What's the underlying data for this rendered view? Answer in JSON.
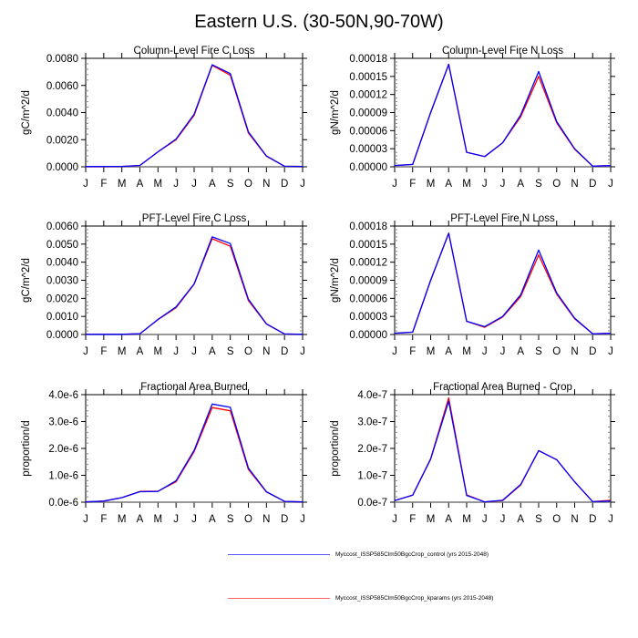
{
  "title": "Eastern U.S. (30-50N,90-70W)",
  "legend": [
    {
      "label": "Myccost_ISSP585Clm50BgcCrop_control (yrs 2015-2048)",
      "color": "#0000ff"
    },
    {
      "label": "Myccost_ISSP585Clm50BgcCrop_kparams (yrs 2015-2048)",
      "color": "#ff0000"
    }
  ],
  "chart_data": [
    {
      "type": "line",
      "title": "Column-Level Fire C Loss",
      "xlabel": "",
      "ylabel": "gC/m^2/d",
      "x": [
        "J",
        "F",
        "M",
        "A",
        "M",
        "J",
        "J",
        "A",
        "S",
        "O",
        "N",
        "D",
        "J"
      ],
      "ylim": [
        0,
        0.008
      ],
      "yticks": [
        0,
        0.002,
        0.004,
        0.006,
        0.008
      ],
      "ytick_labels": [
        "0.0000",
        "0.0020",
        "0.0040",
        "0.0060",
        "0.0080"
      ],
      "series": [
        {
          "name": "Myccost_ISSP585Clm50BgcCrop_kparams (yrs 2015-2048)",
          "color": "#ff0000",
          "values": [
            2e-05,
            2e-05,
            3e-05,
            0.0001,
            0.0011,
            0.002,
            0.0038,
            0.00748,
            0.00675,
            0.0025,
            0.00078,
            4e-05,
            2e-05
          ]
        },
        {
          "name": "Myccost_ISSP585Clm50BgcCrop_control (yrs 2015-2048)",
          "color": "#0000ff",
          "values": [
            2e-05,
            2e-05,
            3e-05,
            0.0001,
            0.0011,
            0.00205,
            0.00388,
            0.00752,
            0.00688,
            0.00258,
            0.0008,
            4e-05,
            2e-05
          ]
        }
      ]
    },
    {
      "type": "line",
      "title": "Column-Level Fire N Loss",
      "xlabel": "",
      "ylabel": "gN/m^2/d",
      "x": [
        "J",
        "F",
        "M",
        "A",
        "M",
        "J",
        "J",
        "A",
        "S",
        "O",
        "N",
        "D",
        "J"
      ],
      "ylim": [
        0,
        0.00018
      ],
      "yticks": [
        0,
        3e-05,
        6e-05,
        9e-05,
        0.00012,
        0.00015,
        0.00018
      ],
      "ytick_labels": [
        "0.00000",
        "0.00003",
        "0.00006",
        "0.00009",
        "0.00012",
        "0.00015",
        "0.00018"
      ],
      "series": [
        {
          "name": "Myccost_ISSP585Clm50BgcCrop_kparams (yrs 2015-2048)",
          "color": "#ff0000",
          "values": [
            2e-06,
            4e-06,
            9e-05,
            0.00017,
            2.4e-05,
            1.7e-05,
            4e-05,
            8.3e-05,
            0.00015,
            7.3e-05,
            2.9e-05,
            1e-06,
            2e-06
          ]
        },
        {
          "name": "Myccost_ISSP585Clm50BgcCrop_control (yrs 2015-2048)",
          "color": "#0000ff",
          "values": [
            2e-06,
            4e-06,
            9e-05,
            0.00017,
            2.4e-05,
            1.7e-05,
            4e-05,
            8.6e-05,
            0.000158,
            7.5e-05,
            3e-05,
            1e-06,
            2e-06
          ]
        }
      ]
    },
    {
      "type": "line",
      "title": "PFT-Level Fire C Loss",
      "xlabel": "",
      "ylabel": "gC/m^2/d",
      "x": [
        "J",
        "F",
        "M",
        "A",
        "M",
        "J",
        "J",
        "A",
        "S",
        "O",
        "N",
        "D",
        "J"
      ],
      "ylim": [
        0,
        0.006
      ],
      "yticks": [
        0,
        0.001,
        0.002,
        0.003,
        0.004,
        0.005,
        0.006
      ],
      "ytick_labels": [
        "0.0000",
        "0.0010",
        "0.0020",
        "0.0030",
        "0.0040",
        "0.0050",
        "0.0060"
      ],
      "series": [
        {
          "name": "Myccost_ISSP585Clm50BgcCrop_kparams (yrs 2015-2048)",
          "color": "#ff0000",
          "values": [
            1e-05,
            1e-05,
            1e-05,
            4e-05,
            0.00082,
            0.00148,
            0.00278,
            0.0053,
            0.00488,
            0.00188,
            0.00058,
            3e-05,
            1e-05
          ]
        },
        {
          "name": "Myccost_ISSP585Clm50BgcCrop_control (yrs 2015-2048)",
          "color": "#0000ff",
          "values": [
            1e-05,
            1e-05,
            1e-05,
            4e-05,
            0.00083,
            0.00153,
            0.0028,
            0.0054,
            0.00503,
            0.00195,
            0.00059,
            3e-05,
            1e-05
          ]
        }
      ]
    },
    {
      "type": "line",
      "title": "PFT-Level Fire N Loss",
      "xlabel": "",
      "ylabel": "gN/m^2/d",
      "x": [
        "J",
        "F",
        "M",
        "A",
        "M",
        "J",
        "J",
        "A",
        "S",
        "O",
        "N",
        "D",
        "J"
      ],
      "ylim": [
        0,
        0.00018
      ],
      "yticks": [
        0,
        3e-05,
        6e-05,
        9e-05,
        0.00012,
        0.00015,
        0.00018
      ],
      "ytick_labels": [
        "0.00000",
        "0.00003",
        "0.00006",
        "0.00009",
        "0.00012",
        "0.00015",
        "0.00018"
      ],
      "series": [
        {
          "name": "Myccost_ISSP585Clm50BgcCrop_kparams (yrs 2015-2048)",
          "color": "#ff0000",
          "values": [
            2e-06,
            4e-06,
            9e-05,
            0.000168,
            2.2e-05,
            1.2e-05,
            2.9e-05,
            6.3e-05,
            0.000132,
            6.7e-05,
            2.6e-05,
            1e-06,
            2e-06
          ]
        },
        {
          "name": "Myccost_ISSP585Clm50BgcCrop_control (yrs 2015-2048)",
          "color": "#0000ff",
          "values": [
            2e-06,
            4e-06,
            9e-05,
            0.000168,
            2.2e-05,
            1.3e-05,
            3e-05,
            6.6e-05,
            0.00014,
            6.9e-05,
            2.7e-05,
            1e-06,
            2e-06
          ]
        }
      ]
    },
    {
      "type": "line",
      "title": "Fractional Area Burned",
      "xlabel": "",
      "ylabel": "proportion/d",
      "x": [
        "J",
        "F",
        "M",
        "A",
        "M",
        "J",
        "J",
        "A",
        "S",
        "O",
        "N",
        "D",
        "J"
      ],
      "ylim": [
        0,
        4e-06
      ],
      "yticks": [
        0,
        1e-06,
        2e-06,
        3e-06,
        4e-06
      ],
      "ytick_labels": [
        "0.0e-6",
        "1.0e-6",
        "2.0e-6",
        "3.0e-6",
        "4.0e-6"
      ],
      "series": [
        {
          "name": "Myccost_ISSP585Clm50BgcCrop_kparams (yrs 2015-2048)",
          "color": "#ff0000",
          "values": [
            1e-08,
            4e-08,
            1.7e-07,
            4e-07,
            4.1e-07,
            7.6e-07,
            1.88e-06,
            3.52e-06,
            3.4e-06,
            1.22e-06,
            3.8e-07,
            3e-08,
            1e-08
          ]
        },
        {
          "name": "Myccost_ISSP585Clm50BgcCrop_control (yrs 2015-2048)",
          "color": "#0000ff",
          "values": [
            1e-08,
            4e-08,
            1.7e-07,
            3.9e-07,
            4e-07,
            8e-07,
            1.93e-06,
            3.65e-06,
            3.53e-06,
            1.27e-06,
            3.9e-07,
            3e-08,
            1e-08
          ]
        }
      ]
    },
    {
      "type": "line",
      "title": "Fractional Area Burned - Crop",
      "xlabel": "",
      "ylabel": "proportion/d",
      "x": [
        "J",
        "F",
        "M",
        "A",
        "M",
        "J",
        "J",
        "A",
        "S",
        "O",
        "N",
        "D",
        "J"
      ],
      "ylim": [
        0,
        4e-07
      ],
      "yticks": [
        0,
        1e-07,
        2e-07,
        3e-07,
        4e-07
      ],
      "ytick_labels": [
        "0.0e-7",
        "1.0e-7",
        "2.0e-7",
        "3.0e-7",
        "4.0e-7"
      ],
      "series": [
        {
          "name": "Myccost_ISSP585Clm50BgcCrop_kparams (yrs 2015-2048)",
          "color": "#ff0000",
          "values": [
            6e-09,
            2.6e-08,
            1.62e-07,
            3.88e-07,
            2.7e-08,
            1e-09,
            6e-09,
            6.4e-08,
            1.92e-07,
            1.58e-07,
            7.6e-08,
            2e-09,
            7e-09
          ]
        },
        {
          "name": "Myccost_ISSP585Clm50BgcCrop_control (yrs 2015-2048)",
          "color": "#0000ff",
          "values": [
            6e-09,
            2.6e-08,
            1.6e-07,
            3.76e-07,
            2.5e-08,
            1e-09,
            7e-09,
            6.6e-08,
            1.92e-07,
            1.58e-07,
            7.6e-08,
            2e-09,
            4e-09
          ]
        }
      ]
    }
  ]
}
